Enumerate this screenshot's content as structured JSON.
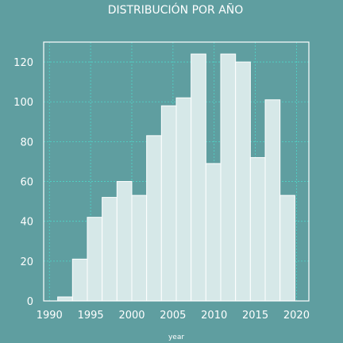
{
  "chart_data": {
    "type": "bar",
    "title": "DISTRIBUCIÓN POR AÑO",
    "xlabel": "year",
    "ylabel": "",
    "grid": true,
    "xlim": [
      1989.3,
      2021.5
    ],
    "ylim": [
      0,
      130
    ],
    "xticks": [
      1990,
      1995,
      2000,
      2005,
      2010,
      2015,
      2020
    ],
    "yticks": [
      0,
      20,
      40,
      60,
      80,
      100,
      120
    ],
    "bin_edges": [
      1991.0,
      1992.8,
      1994.6,
      1996.4,
      1998.2,
      2000.0,
      2001.8,
      2003.6,
      2005.4,
      2007.2,
      2009.0,
      2010.8,
      2012.6,
      2014.4,
      2016.2,
      2018.0,
      2019.8
    ],
    "values": [
      2,
      21,
      42,
      52,
      60,
      53,
      83,
      98,
      102,
      124,
      69,
      124,
      120,
      72,
      101,
      53
    ]
  },
  "colors": {
    "background": "#5f9ea0",
    "bar_fill": "#d6e8e8",
    "bar_edge": "#ffffff",
    "grid": "#4fd6c9",
    "axes_edge": "#ffffff",
    "text": "#ffffff"
  }
}
